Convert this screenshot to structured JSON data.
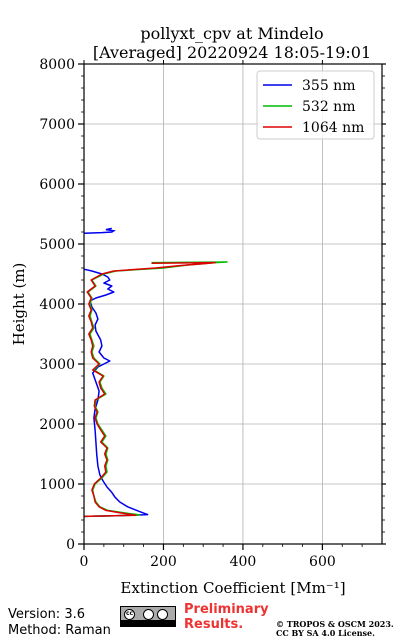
{
  "chart_data": {
    "type": "line",
    "title": [
      "pollyxt_cpv at Mindelo",
      "[Averaged] 20220924 18:05-19:01"
    ],
    "xlabel": "Extinction Coefficient [Mm⁻¹]",
    "ylabel": "Height (m)",
    "xlim": [
      0,
      750
    ],
    "ylim": [
      0,
      8000
    ],
    "xticks": [
      0,
      200,
      400,
      600
    ],
    "yticks": [
      0,
      1000,
      2000,
      3000,
      4000,
      5000,
      6000,
      7000,
      8000
    ],
    "grid": true,
    "legend_position": "top-right",
    "series": [
      {
        "name": "355 nm",
        "color": "#0000ee",
        "points": [
          [
            0,
            460
          ],
          [
            80,
            470
          ],
          [
            160,
            490
          ],
          [
            140,
            540
          ],
          [
            110,
            620
          ],
          [
            90,
            700
          ],
          [
            78,
            780
          ],
          [
            70,
            860
          ],
          [
            58,
            950
          ],
          [
            48,
            1050
          ],
          [
            40,
            1150
          ],
          [
            35,
            1300
          ],
          [
            32,
            1500
          ],
          [
            30,
            1700
          ],
          [
            28,
            1900
          ],
          [
            25,
            2100
          ],
          [
            28,
            2250
          ],
          [
            35,
            2400
          ],
          [
            38,
            2550
          ],
          [
            30,
            2700
          ],
          [
            22,
            2850
          ],
          [
            35,
            2950
          ],
          [
            50,
            3000
          ],
          [
            65,
            3050
          ],
          [
            50,
            3100
          ],
          [
            38,
            3200
          ],
          [
            45,
            3300
          ],
          [
            42,
            3400
          ],
          [
            30,
            3550
          ],
          [
            28,
            3650
          ],
          [
            35,
            3750
          ],
          [
            30,
            3850
          ],
          [
            20,
            3950
          ],
          [
            15,
            4050
          ],
          [
            30,
            4100
          ],
          [
            55,
            4150
          ],
          [
            75,
            4200
          ],
          [
            60,
            4250
          ],
          [
            70,
            4300
          ],
          [
            50,
            4350
          ],
          [
            65,
            4400
          ],
          [
            60,
            4450
          ],
          [
            45,
            4500
          ],
          [
            20,
            4550
          ],
          [
            0,
            4580
          ]
        ],
        "blob": [
          [
            0,
            5180
          ],
          [
            45,
            5190
          ],
          [
            70,
            5200
          ],
          [
            75,
            5220
          ],
          [
            55,
            5240
          ],
          [
            70,
            5260
          ]
        ]
      },
      {
        "name": "532 nm",
        "color": "#00bb00",
        "points": [
          [
            0,
            460
          ],
          [
            80,
            470
          ],
          [
            140,
            485
          ],
          [
            100,
            520
          ],
          [
            60,
            560
          ],
          [
            40,
            620
          ],
          [
            30,
            700
          ],
          [
            25,
            800
          ],
          [
            22,
            900
          ],
          [
            28,
            1000
          ],
          [
            45,
            1100
          ],
          [
            58,
            1200
          ],
          [
            55,
            1300
          ],
          [
            60,
            1400
          ],
          [
            55,
            1500
          ],
          [
            60,
            1600
          ],
          [
            45,
            1700
          ],
          [
            55,
            1800
          ],
          [
            45,
            1900
          ],
          [
            35,
            2000
          ],
          [
            30,
            2100
          ],
          [
            35,
            2200
          ],
          [
            28,
            2300
          ],
          [
            30,
            2400
          ],
          [
            55,
            2500
          ],
          [
            45,
            2600
          ],
          [
            40,
            2700
          ],
          [
            50,
            2800
          ],
          [
            25,
            2900
          ],
          [
            40,
            3000
          ],
          [
            25,
            3100
          ],
          [
            20,
            3200
          ],
          [
            25,
            3300
          ],
          [
            20,
            3400
          ],
          [
            15,
            3500
          ],
          [
            25,
            3600
          ],
          [
            20,
            3700
          ],
          [
            15,
            3800
          ],
          [
            20,
            3900
          ],
          [
            15,
            4000
          ],
          [
            20,
            4100
          ],
          [
            10,
            4200
          ],
          [
            30,
            4300
          ],
          [
            20,
            4400
          ],
          [
            50,
            4500
          ],
          [
            80,
            4550
          ],
          [
            200,
            4600
          ],
          [
            260,
            4650
          ],
          [
            330,
            4690
          ],
          [
            360,
            4700
          ],
          [
            170,
            4690
          ]
        ]
      },
      {
        "name": "1064 nm",
        "color": "#dd0000",
        "points": [
          [
            0,
            460
          ],
          [
            75,
            470
          ],
          [
            130,
            480
          ],
          [
            90,
            520
          ],
          [
            55,
            560
          ],
          [
            38,
            620
          ],
          [
            28,
            700
          ],
          [
            25,
            800
          ],
          [
            20,
            900
          ],
          [
            26,
            1000
          ],
          [
            42,
            1100
          ],
          [
            55,
            1200
          ],
          [
            52,
            1300
          ],
          [
            58,
            1400
          ],
          [
            52,
            1500
          ],
          [
            58,
            1600
          ],
          [
            42,
            1700
          ],
          [
            52,
            1800
          ],
          [
            42,
            1900
          ],
          [
            33,
            2000
          ],
          [
            28,
            2100
          ],
          [
            33,
            2200
          ],
          [
            26,
            2300
          ],
          [
            28,
            2400
          ],
          [
            52,
            2500
          ],
          [
            42,
            2600
          ],
          [
            38,
            2700
          ],
          [
            48,
            2800
          ],
          [
            22,
            2900
          ],
          [
            38,
            3000
          ],
          [
            22,
            3100
          ],
          [
            18,
            3200
          ],
          [
            22,
            3300
          ],
          [
            18,
            3400
          ],
          [
            12,
            3500
          ],
          [
            22,
            3600
          ],
          [
            18,
            3700
          ],
          [
            12,
            3800
          ],
          [
            18,
            3900
          ],
          [
            12,
            4000
          ],
          [
            18,
            4100
          ],
          [
            8,
            4200
          ],
          [
            28,
            4300
          ],
          [
            18,
            4400
          ],
          [
            45,
            4500
          ],
          [
            75,
            4550
          ],
          [
            180,
            4600
          ],
          [
            240,
            4640
          ],
          [
            300,
            4670
          ],
          [
            330,
            4690
          ],
          [
            170,
            4680
          ]
        ]
      }
    ]
  },
  "footer": {
    "version": "Version: 3.6",
    "method": "Method: Raman",
    "preliminary": [
      "Preliminary",
      "Results."
    ],
    "copyright": [
      "© TROPOS & OSCM 2023.",
      "CC BY SA 4.0 License."
    ]
  },
  "license_badge": {
    "icons": [
      "cc",
      "by",
      "sa"
    ]
  }
}
